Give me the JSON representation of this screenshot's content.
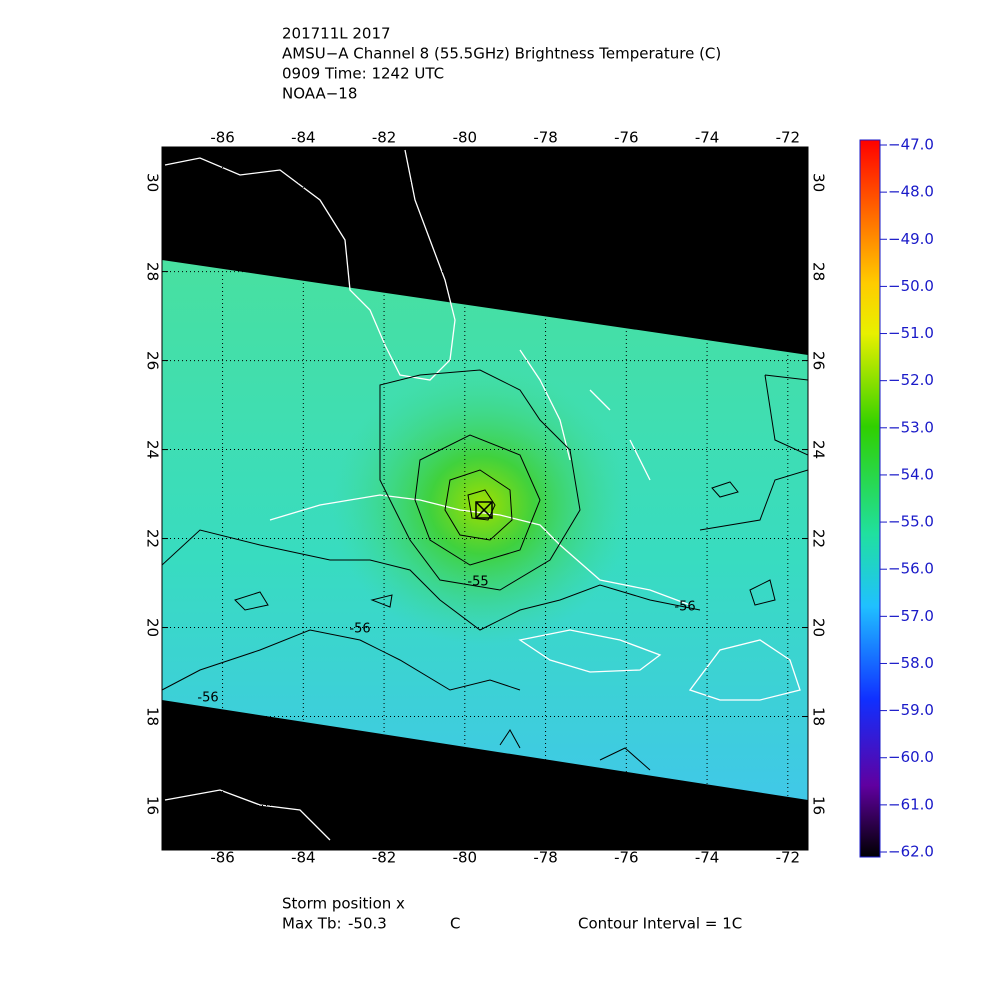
{
  "header": {
    "lines": [
      "201711L 2017",
      "AMSU−A Channel 8 (55.5GHz) Brightness Temperature (C)",
      "0909 Time: 1242 UTC",
      "NOAA−18"
    ]
  },
  "map": {
    "xlim": [
      -87.5,
      -71.5
    ],
    "ylim": [
      15,
      30.8
    ],
    "xticks": [
      -86,
      -84,
      -82,
      -80,
      -78,
      -76,
      -74,
      -72
    ],
    "yticks": [
      16,
      18,
      20,
      22,
      24,
      26,
      28,
      30
    ],
    "contour_labels": [
      -55,
      -56,
      -56,
      -56
    ]
  },
  "colorbar": {
    "ylim": [
      -62,
      -47
    ],
    "ticks": [
      {
        "value": -47,
        "label": "−47.0"
      },
      {
        "value": -48,
        "label": "−48.0"
      },
      {
        "value": -49,
        "label": "−49.0"
      },
      {
        "value": -50,
        "label": "−50.0"
      },
      {
        "value": -51,
        "label": "−51.0"
      },
      {
        "value": -52,
        "label": "−52.0"
      },
      {
        "value": -53,
        "label": "−53.0"
      },
      {
        "value": -54,
        "label": "−54.0"
      },
      {
        "value": -55,
        "label": "−55.0"
      },
      {
        "value": -56,
        "label": "−56.0"
      },
      {
        "value": -57,
        "label": "−57.0"
      },
      {
        "value": -58,
        "label": "−58.0"
      },
      {
        "value": -59,
        "label": "−59.0"
      },
      {
        "value": -60,
        "label": "−60.0"
      },
      {
        "value": -61,
        "label": "−61.0"
      },
      {
        "value": -62,
        "label": "−62.0"
      }
    ]
  },
  "footer": {
    "storm_position": "Storm position x",
    "max_tb_label": "Max Tb:",
    "max_tb": -50.3,
    "max_tb_unit": "C",
    "contour_interval": "Contour Interval = 1C"
  }
}
